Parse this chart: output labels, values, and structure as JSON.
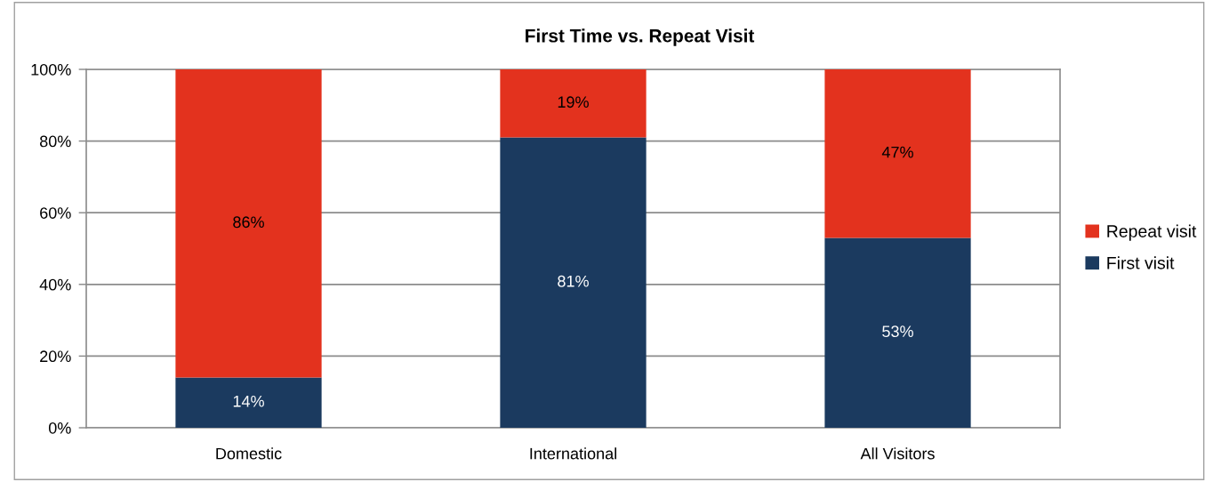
{
  "chart_data": {
    "type": "bar",
    "title": "First Time vs. Repeat Visit",
    "categories": [
      "Domestic",
      "International",
      "All Visitors"
    ],
    "stacked": true,
    "series": [
      {
        "name": "First visit",
        "color": "#1b3a5f",
        "values": [
          14,
          81,
          53
        ],
        "value_labels": [
          "14%",
          "81%",
          "53%"
        ]
      },
      {
        "name": "Repeat visit",
        "color": "#e3321e",
        "values": [
          86,
          19,
          47
        ],
        "value_labels": [
          "86%",
          "19%",
          "47%"
        ]
      }
    ],
    "ylim": [
      0,
      100
    ],
    "yticks": [
      {
        "value": 0,
        "label": "0%"
      },
      {
        "value": 20,
        "label": "20%"
      },
      {
        "value": 40,
        "label": "40%"
      },
      {
        "value": 60,
        "label": "60%"
      },
      {
        "value": 80,
        "label": "80%"
      },
      {
        "value": 100,
        "label": "100%"
      }
    ],
    "grid": "y",
    "legend": "right"
  }
}
